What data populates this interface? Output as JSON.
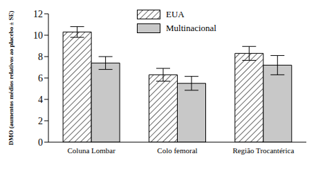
{
  "chart_data": {
    "type": "bar",
    "y_label": "DMO (aumentos médios relativos ao placebo ± SE)",
    "categories": [
      "Coluna Lombar",
      "Colo femoral",
      "Região Trocantérica"
    ],
    "series": [
      {
        "name": "EUA",
        "color": "#ffffff",
        "values": [
          10.3,
          6.3,
          8.3
        ],
        "errors": [
          0.5,
          0.6,
          0.65
        ]
      },
      {
        "name": "Multinacional",
        "color": "#c8c8c8",
        "values": [
          7.4,
          5.5,
          7.2
        ],
        "errors": [
          0.6,
          0.65,
          0.9
        ]
      }
    ],
    "ylim": [
      0,
      12
    ],
    "yticks": [
      0,
      2,
      4,
      6,
      8,
      10,
      12
    ],
    "grid": false,
    "legend": "top"
  }
}
